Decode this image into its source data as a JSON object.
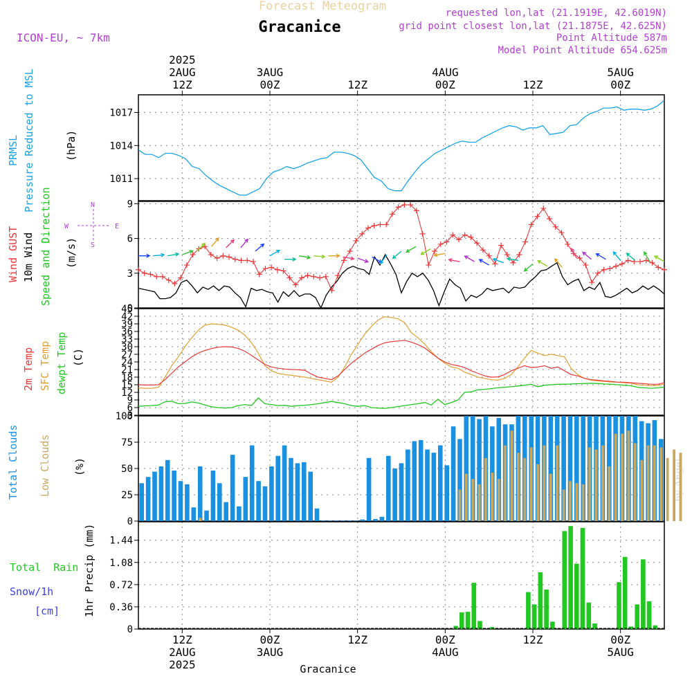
{
  "header": {
    "title": "Forecast Meteogram",
    "location": "Gracanice",
    "model": "ICON-EU, ~ 7km",
    "requested": "requested lon,lat (21.1919E, 42.6019N)",
    "closest": "grid point closest lon,lat (21.1875E, 42.625N)",
    "point_altitude": "Point Altitude 587m",
    "model_altitude": "Model Point Altitude 654.625m",
    "footer_location": "Gracanice",
    "credit": "by Angel"
  },
  "time_axis": {
    "start": "2025-08-02 06Z",
    "end": "2025-08-05 06Z",
    "step_hours": 1,
    "top_labels": [
      {
        "hour": 6,
        "lines": [
          "2025",
          "2AUG",
          "12Z"
        ]
      },
      {
        "hour": 18,
        "lines": [
          "3AUG",
          "00Z"
        ]
      },
      {
        "hour": 30,
        "lines": [
          "12Z"
        ]
      },
      {
        "hour": 42,
        "lines": [
          "4AUG",
          "00Z"
        ]
      },
      {
        "hour": 54,
        "lines": [
          "12Z"
        ]
      },
      {
        "hour": 66,
        "lines": [
          "5AUG",
          "00Z"
        ]
      }
    ],
    "bottom_labels": [
      {
        "hour": 6,
        "lines": [
          "12Z",
          "2AUG",
          "2025"
        ]
      },
      {
        "hour": 18,
        "lines": [
          "00Z",
          "3AUG"
        ]
      },
      {
        "hour": 30,
        "lines": [
          "12Z"
        ]
      },
      {
        "hour": 42,
        "lines": [
          "00Z",
          "4AUG"
        ]
      },
      {
        "hour": 54,
        "lines": [
          "12Z"
        ]
      },
      {
        "hour": 66,
        "lines": [
          "00Z",
          "5AUG"
        ]
      }
    ]
  },
  "panel_labels": {
    "pressure": {
      "name": "PRMSL",
      "desc": "Pressure Reduced to MSL",
      "unit": "(hPa)"
    },
    "wind": {
      "gust": "Wind GUST",
      "wind": "10m Wind",
      "dir": "Speed and Direction",
      "unit": "(m/s)",
      "compass": {
        "n": "N",
        "s": "S",
        "e": "E",
        "w": "W"
      }
    },
    "temp": {
      "t2m": "2m Temp",
      "sfc": "SFC Temp",
      "dew": "dewpt Temp",
      "unit": "(C)"
    },
    "clouds": {
      "total": "Total Clouds",
      "low": "Low Clouds",
      "unit": "(%)"
    },
    "precip": {
      "rain": "Total  Rain",
      "snow": "Snow/1h",
      "snow_unit": "[cm]",
      "name": "1hr Precip (mm)"
    }
  },
  "colors": {
    "pressure": "#1aa3e8",
    "gust": "#e8383a",
    "wind": "#000000",
    "t2m": "#e8383a",
    "sfc": "#e0a030",
    "dew": "#22c722",
    "total_cloud": "#1a90e0",
    "low_cloud": "#c8a860",
    "rain": "#22c722",
    "snow": "#4040e0",
    "label_purple": "#b040d0",
    "title_tan": "#ead2a0"
  },
  "chart_data": [
    {
      "type": "line",
      "name": "pressure",
      "yticks": [
        1011,
        1014,
        1017
      ],
      "ylim": [
        1009.0,
        1018.6
      ],
      "x_hours_start": 0,
      "values": [
        1013.6,
        1013.2,
        1013.2,
        1012.9,
        1013.3,
        1013.3,
        1013.1,
        1012.8,
        1012.1,
        1011.9,
        1011.3,
        1010.8,
        1010.4,
        1010.1,
        1009.8,
        1009.5,
        1009.5,
        1009.8,
        1010.1,
        1011.0,
        1011.6,
        1011.8,
        1012.1,
        1011.9,
        1012.1,
        1012.4,
        1012.6,
        1012.8,
        1012.9,
        1013.4,
        1013.4,
        1013.3,
        1013.1,
        1012.7,
        1011.9,
        1011.1,
        1010.8,
        1010.1,
        1009.9,
        1009.9,
        1010.8,
        1011.6,
        1012.3,
        1012.8,
        1013.3,
        1013.6,
        1013.9,
        1014.2,
        1014.4,
        1014.3,
        1014.3,
        1014.7,
        1015.0,
        1015.3,
        1015.6,
        1015.8,
        1015.7,
        1015.4,
        1015.6,
        1015.6,
        1015.8,
        1015.0,
        1015.1,
        1015.2,
        1015.8,
        1015.9,
        1016.5,
        1016.9,
        1017.1,
        1017.4,
        1017.4,
        1017.5,
        1017.2,
        1017.3,
        1017.3,
        1017.2,
        1017.3,
        1017.6,
        1018.1
      ]
    },
    {
      "type": "line",
      "name": "wind",
      "yticks": [
        0,
        3,
        6,
        9
      ],
      "ylim": [
        0,
        9.2
      ],
      "x_hours_start": 0,
      "wind": [
        1.7,
        1.6,
        1.5,
        1.4,
        0.8,
        0.8,
        0.9,
        1.3,
        2.2,
        2.4,
        1.9,
        1.3,
        1.8,
        1.6,
        1.9,
        1.5,
        1.9,
        1.8,
        1.3,
        0.9,
        0.1,
        1.7,
        1.5,
        1.6,
        1.4,
        1.3,
        0.5,
        1.4,
        1.0,
        1.5,
        1.0,
        1.2,
        1.2,
        0.9,
        0.0,
        1.1,
        1.8,
        2.3,
        3.0,
        3.4,
        3.6,
        3.4,
        3.3,
        2.9,
        4.4,
        3.7,
        4.6,
        3.8,
        2.9,
        1.3,
        2.3,
        3.0,
        2.7,
        3.0,
        2.4,
        1.5,
        0.2,
        1.4,
        2.5,
        2.0,
        1.7,
        0.6,
        1.1,
        0.9,
        1.2,
        1.7,
        1.5,
        1.6,
        1.7,
        1.3,
        1.8,
        1.7,
        1.8,
        2.3,
        2.7,
        3.2,
        3.3,
        3.6,
        3.9,
        2.7,
        2.0,
        2.3,
        2.5,
        1.5,
        1.8,
        1.6,
        2.2,
        1.0,
        0.9,
        1.1,
        1.4,
        1.7,
        1.3,
        1.5,
        1.9,
        1.6,
        1.9,
        1.6,
        1.2
      ],
      "gust": [
        3.3,
        3.0,
        2.9,
        2.7,
        2.7,
        2.4,
        2.1,
        2.6,
        3.7,
        4.6,
        5.1,
        5.3,
        4.6,
        4.3,
        4.5,
        4.4,
        4.2,
        4.1,
        4.1,
        4.0,
        2.9,
        3.4,
        3.5,
        3.3,
        3.2,
        2.6,
        2.0,
        2.6,
        2.8,
        2.7,
        2.6,
        2.7,
        1.5,
        2.8,
        4.1,
        4.9,
        5.8,
        6.4,
        6.9,
        7.1,
        7.2,
        7.2,
        8.1,
        8.7,
        8.9,
        8.9,
        8.4,
        6.4,
        3.7,
        4.9,
        5.5,
        5.7,
        6.3,
        5.9,
        6.3,
        6.1,
        5.6,
        5.0,
        4.5,
        3.8,
        5.4,
        4.6,
        3.9,
        4.6,
        5.7,
        7.2,
        7.9,
        8.6,
        7.7,
        7.0,
        6.5,
        5.5,
        4.7,
        4.3,
        3.7,
        2.2,
        3.0,
        3.3,
        3.4,
        3.6,
        3.8,
        4.1,
        4.0,
        4.0,
        4.1,
        3.9,
        3.5,
        3.3
      ],
      "arrows": [
        {
          "h": 0,
          "spd": 4.5,
          "dir": 90
        },
        {
          "h": 2,
          "spd": 4.5,
          "dir": 85
        },
        {
          "h": 4,
          "spd": 4.5,
          "dir": 80
        },
        {
          "h": 6,
          "spd": 4.6,
          "dir": 70
        },
        {
          "h": 8,
          "spd": 4.9,
          "dir": 45
        },
        {
          "h": 10,
          "spd": 5.3,
          "dir": 40
        },
        {
          "h": 12,
          "spd": 5.2,
          "dir": 45
        },
        {
          "h": 14,
          "spd": 5.2,
          "dir": 40
        },
        {
          "h": 16,
          "spd": 4.9,
          "dir": 50
        },
        {
          "h": 18,
          "spd": 4.5,
          "dir": 60
        },
        {
          "h": 20,
          "spd": 4.2,
          "dir": 90
        },
        {
          "h": 22,
          "spd": 4.5,
          "dir": 100
        },
        {
          "h": 24,
          "spd": 4.5,
          "dir": 95
        },
        {
          "h": 26,
          "spd": 4.5,
          "dir": 90
        },
        {
          "h": 28,
          "spd": 4.4,
          "dir": 100
        },
        {
          "h": 30,
          "spd": 4.3,
          "dir": 110
        },
        {
          "h": 32,
          "spd": 4.4,
          "dir": 120
        },
        {
          "h": 34,
          "spd": 4.6,
          "dir": 215
        },
        {
          "h": 36,
          "spd": 4.9,
          "dir": 230
        },
        {
          "h": 38,
          "spd": 5.3,
          "dir": 240
        },
        {
          "h": 40,
          "spd": 5.1,
          "dir": 240
        },
        {
          "h": 42,
          "spd": 4.7,
          "dir": 260
        },
        {
          "h": 44,
          "spd": 4.0,
          "dir": 280
        },
        {
          "h": 46,
          "spd": 4.0,
          "dir": 300
        },
        {
          "h": 48,
          "spd": 3.7,
          "dir": 300
        },
        {
          "h": 50,
          "spd": 3.9,
          "dir": 290
        },
        {
          "h": 52,
          "spd": 4.1,
          "dir": 280
        },
        {
          "h": 54,
          "spd": 3.8,
          "dir": 230
        },
        {
          "h": 56,
          "spd": 3.6,
          "dir": 300
        },
        {
          "h": 58,
          "spd": 3.5,
          "dir": 320
        },
        {
          "h": 60,
          "spd": 4.3,
          "dir": 330
        },
        {
          "h": 62,
          "spd": 4.2,
          "dir": 310
        },
        {
          "h": 64,
          "spd": 4.2,
          "dir": 300
        },
        {
          "h": 66,
          "spd": 4.1,
          "dir": 320
        },
        {
          "h": 68,
          "spd": 4.1,
          "dir": 310
        },
        {
          "h": 70,
          "spd": 4.0,
          "dir": 330
        },
        {
          "h": 72,
          "spd": 4.0,
          "dir": 300
        }
      ]
    },
    {
      "type": "line",
      "name": "temperature",
      "yticks": [
        3,
        6,
        9,
        12,
        15,
        18,
        21,
        24,
        27,
        30,
        33,
        36,
        39,
        42,
        45
      ],
      "ylim": [
        3,
        45
      ],
      "x_hours_start": 0,
      "t2m": [
        15.0,
        14.9,
        14.9,
        15.0,
        17.0,
        19.5,
        22.0,
        24.0,
        26.0,
        27.5,
        28.5,
        29.3,
        29.8,
        30.0,
        29.9,
        29.3,
        28.2,
        26.5,
        24.8,
        23.0,
        22.0,
        21.5,
        21.2,
        21.0,
        20.9,
        20.7,
        19.2,
        18.0,
        17.5,
        17.0,
        18.5,
        21.0,
        23.5,
        25.5,
        27.5,
        29.0,
        30.5,
        31.5,
        32.0,
        32.2,
        32.5,
        31.8,
        30.8,
        29.5,
        27.5,
        25.5,
        24.0,
        23.0,
        22.5,
        21.8,
        20.5,
        19.5,
        18.5,
        18.0,
        18.1,
        19.0,
        20.5,
        21.5,
        22.5,
        21.8,
        22.0,
        22.5,
        21.5,
        22.0,
        20.5,
        19.0,
        18.5,
        17.5,
        17.0,
        16.8,
        16.5,
        16.3,
        16.0,
        16.0,
        15.8,
        15.6,
        15.4,
        15.2,
        15.2,
        15.8
      ],
      "sfc": [
        13.8,
        13.6,
        13.6,
        14.0,
        18.0,
        22.5,
        26.0,
        30.0,
        33.5,
        36.5,
        38.5,
        39.0,
        38.8,
        38.5,
        37.7,
        36.5,
        34.5,
        31.5,
        27.5,
        22.5,
        20.5,
        19.5,
        19.0,
        18.7,
        18.3,
        18.0,
        17.5,
        17.0,
        16.5,
        16.0,
        18.0,
        22.0,
        27.0,
        31.0,
        35.0,
        38.0,
        40.5,
        41.8,
        41.5,
        41.0,
        39.5,
        35.5,
        33.5,
        31.0,
        28.0,
        25.5,
        23.5,
        22.0,
        21.5,
        20.0,
        19.0,
        18.0,
        17.5,
        17.0,
        16.8,
        17.5,
        19.0,
        22.0,
        25.5,
        28.5,
        27.5,
        26.5,
        27.0,
        26.5,
        26.0,
        21.5,
        19.0,
        17.5,
        16.8,
        16.5,
        16.3,
        16.1,
        16.0,
        15.8,
        15.6,
        15.0,
        14.8,
        14.6,
        14.7,
        15.3
      ],
      "dew": [
        6.5,
        6.7,
        6.8,
        7.0,
        8.3,
        8.5,
        7.5,
        7.6,
        8.2,
        7.8,
        7.0,
        6.3,
        6.0,
        5.8,
        6.0,
        6.8,
        7.2,
        6.8,
        9.8,
        7.5,
        7.2,
        6.8,
        6.9,
        6.5,
        6.8,
        6.9,
        7.2,
        7.5,
        8.0,
        8.4,
        8.0,
        7.5,
        6.8,
        6.5,
        6.8,
        6.0,
        5.8,
        5.7,
        6.0,
        6.4,
        6.8,
        7.2,
        7.5,
        8.0,
        7.0,
        9.3,
        7.2,
        8.0,
        9.0,
        12.0,
        12.2,
        13.0,
        13.2,
        13.5,
        13.8,
        14.0,
        14.2,
        14.5,
        14.8,
        15.2,
        14.2,
        14.8,
        15.0,
        15.2,
        15.2,
        15.3,
        15.4,
        15.5,
        15.6,
        15.5,
        15.3,
        15.2,
        15.0,
        14.8,
        14.6,
        14.0,
        13.8,
        13.6,
        13.8,
        14.1
      ]
    },
    {
      "type": "bar",
      "name": "clouds",
      "yticks": [
        0,
        25,
        50,
        75,
        100
      ],
      "ylim": [
        0,
        100
      ],
      "x_hours_start": 0,
      "total": [
        36,
        42,
        47,
        52,
        58,
        48,
        38,
        35,
        13,
        52,
        10,
        48,
        36,
        18,
        63,
        14,
        42,
        72,
        38,
        33,
        52,
        62,
        72,
        60,
        55,
        56,
        47,
        12,
        0.5,
        0.5,
        0.5,
        0.5,
        0.5,
        0.5,
        1.5,
        60,
        2,
        4,
        62,
        50,
        55,
        68,
        76,
        77,
        68,
        65,
        72,
        53,
        90,
        78,
        100,
        100,
        97,
        100,
        90,
        98,
        92,
        92,
        100,
        100,
        100,
        100,
        100,
        100,
        100,
        100,
        100,
        100,
        100,
        100,
        100,
        100,
        100,
        100,
        100,
        100,
        100,
        95,
        93,
        96,
        78
      ],
      "low": [
        0,
        0,
        0,
        0,
        0,
        0,
        0,
        0,
        0,
        3,
        0,
        0,
        0,
        0,
        0,
        0,
        0,
        0,
        0,
        0,
        0,
        0,
        0,
        0,
        0,
        0,
        0,
        0,
        0,
        0,
        0,
        0,
        0,
        0,
        0,
        0,
        0,
        0,
        0,
        0,
        0,
        0,
        0,
        0,
        0,
        0,
        0,
        0,
        0,
        30,
        45,
        40,
        35,
        60,
        46,
        40,
        72,
        86,
        65,
        60,
        70,
        54,
        72,
        45,
        72,
        30,
        38,
        36,
        35,
        70,
        68,
        72,
        52,
        83,
        83,
        86,
        74,
        58,
        72,
        72,
        70,
        60,
        68,
        65
      ]
    },
    {
      "type": "bar",
      "name": "precipitation",
      "yticks": [
        0,
        0.36,
        0.72,
        1.08,
        1.44
      ],
      "ylim": [
        0,
        1.74
      ],
      "x_hours_start": 0,
      "rain": [
        0,
        0,
        0,
        0,
        0,
        0,
        0,
        0,
        0,
        0,
        0,
        0,
        0,
        0,
        0,
        0,
        0,
        0,
        0,
        0,
        0,
        0,
        0,
        0,
        0,
        0,
        0,
        0,
        0,
        0,
        0,
        0,
        0,
        0,
        0,
        0,
        0,
        0,
        0,
        0,
        0,
        0,
        0,
        0,
        0,
        0,
        0,
        0,
        0,
        0,
        0,
        0,
        0.05,
        0.27,
        0.28,
        0.75,
        0.13,
        0,
        0.03,
        0,
        0,
        0,
        0,
        0,
        0.6,
        0.4,
        0.92,
        0.64,
        0.12,
        0,
        1.59,
        1.67,
        1.06,
        1.64,
        0.43,
        0.09,
        0,
        0,
        0,
        0.76,
        1.17,
        0.04,
        0.4,
        1.13,
        0.45,
        0.06,
        0
      ]
    }
  ]
}
